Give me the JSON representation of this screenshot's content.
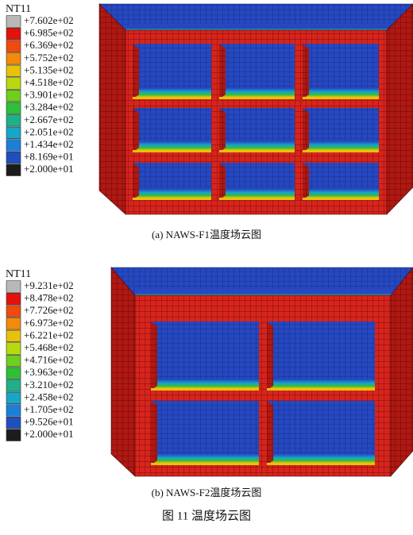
{
  "panels": [
    {
      "legend": {
        "title": "NT11",
        "labels": [
          "+7.602e+02",
          "+6.985e+02",
          "+6.369e+02",
          "+5.752e+02",
          "+5.135e+02",
          "+4.518e+02",
          "+3.901e+02",
          "+3.284e+02",
          "+2.667e+02",
          "+2.051e+02",
          "+1.434e+02",
          "+8.169e+01",
          "+2.000e+01"
        ],
        "colors": [
          "#b8b8b8",
          "#e3120b",
          "#f04b0c",
          "#f28a0a",
          "#e8c20a",
          "#b8d90c",
          "#6fcf1d",
          "#2fbf3a",
          "#1fb08a",
          "#17a6c8",
          "#1b7fd8",
          "#1f4fbf",
          "#1c1c1c"
        ]
      },
      "caption": "(a) NAWS-F1温度场云图"
    },
    {
      "legend": {
        "title": "NT11",
        "labels": [
          "+9.231e+02",
          "+8.478e+02",
          "+7.726e+02",
          "+6.973e+02",
          "+6.221e+02",
          "+5.468e+02",
          "+4.716e+02",
          "+3.963e+02",
          "+3.210e+02",
          "+2.458e+02",
          "+1.705e+02",
          "+9.526e+01",
          "+2.000e+01"
        ],
        "colors": [
          "#b8b8b8",
          "#e3120b",
          "#f04b0c",
          "#f28a0a",
          "#e8c20a",
          "#b8d90c",
          "#6fcf1d",
          "#2fbf3a",
          "#1fb08a",
          "#17a6c8",
          "#1b7fd8",
          "#1f4fbf",
          "#1c1c1c"
        ]
      },
      "caption": "(b) NAWS-F2温度场云图"
    }
  ],
  "figure_caption": "图 11 温度场云图"
}
